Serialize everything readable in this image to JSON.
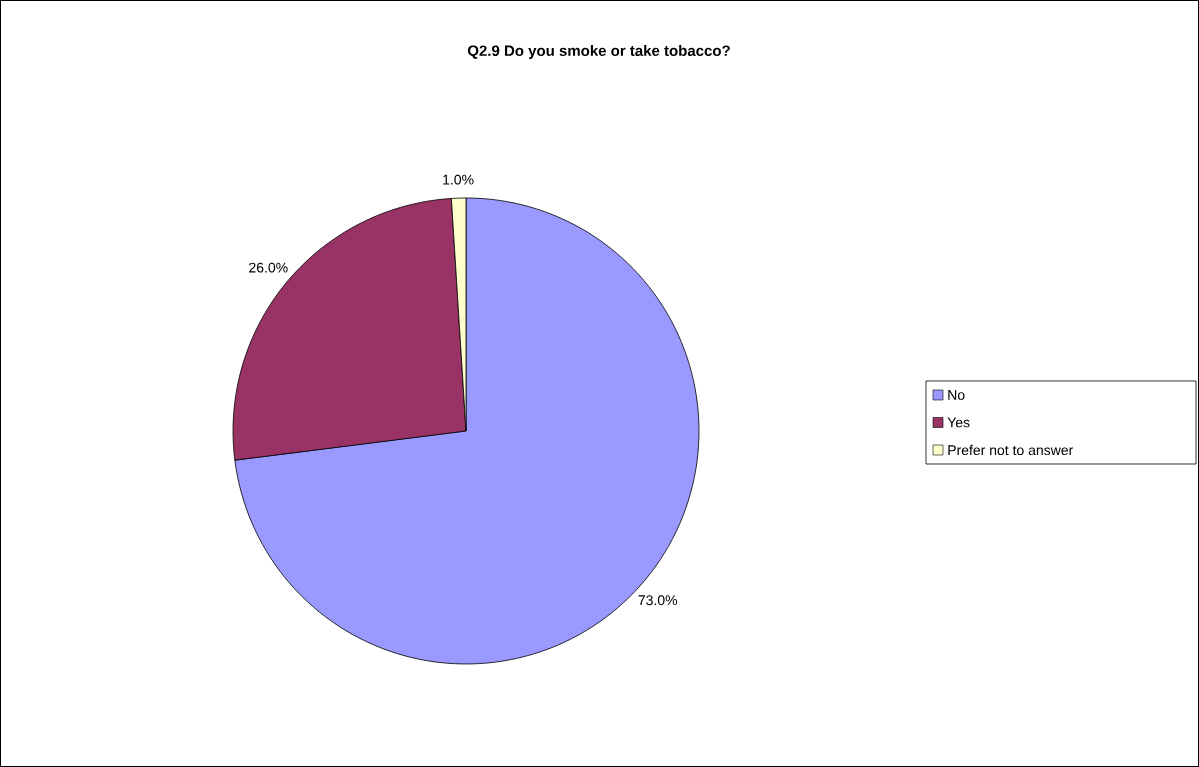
{
  "chart_data": {
    "type": "pie",
    "title": "Q2.9 Do you smoke or take tobacco?",
    "categories": [
      "No",
      "Yes",
      "Prefer not to answer"
    ],
    "values": [
      73,
      26,
      1
    ],
    "colors": [
      "#9999ff",
      "#993366",
      "#ffffcc"
    ],
    "value_labels": [
      "73.0%",
      "26.0%",
      "1.0%"
    ],
    "legend": "right"
  }
}
